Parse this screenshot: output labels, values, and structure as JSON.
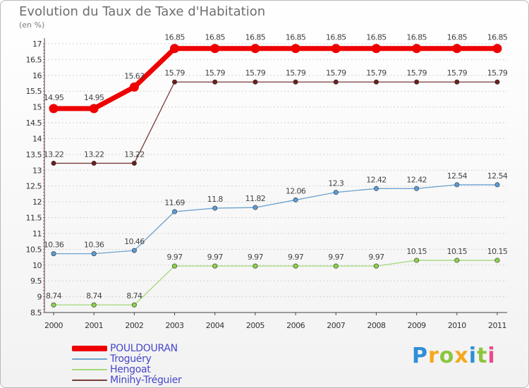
{
  "chart_data": {
    "type": "line",
    "title": "Evolution du Taux de Taxe d'Habitation",
    "ylabel": "(en %)",
    "xlabel": "",
    "x": [
      "2000",
      "2001",
      "2002",
      "2003",
      "2004",
      "2005",
      "2006",
      "2007",
      "2008",
      "2009",
      "2010",
      "2011"
    ],
    "ylim": [
      8.5,
      17
    ],
    "yticks": [
      8.5,
      9,
      9.5,
      10,
      10.5,
      11,
      11.5,
      12,
      12.5,
      13,
      13.5,
      14,
      14.5,
      15,
      15.5,
      16,
      16.5,
      17
    ],
    "grid": "horizontal",
    "legend_position": "bottom-left",
    "series": [
      {
        "name": "POULDOURAN",
        "color": "#ee0000",
        "marker": "#ee0000",
        "values": [
          14.95,
          14.95,
          15.63,
          16.85,
          16.85,
          16.85,
          16.85,
          16.85,
          16.85,
          16.85,
          16.85,
          16.85
        ],
        "labels": [
          "14.95",
          "14.95",
          "15.63",
          "16.85",
          "16.85",
          "16.85",
          "16.85",
          "16.85",
          "16.85",
          "16.85",
          "16.85",
          "16.85"
        ]
      },
      {
        "name": "Troguéry",
        "color": "#6da3d1",
        "marker": "#5b9bd5",
        "values": [
          10.36,
          10.36,
          10.46,
          11.69,
          11.8,
          11.82,
          12.06,
          12.3,
          12.42,
          12.42,
          12.54,
          12.54
        ],
        "labels": [
          "10.36",
          "10.36",
          "10.46",
          "11.69",
          "11.8",
          "11.82",
          "12.06",
          "12.3",
          "12.42",
          "12.42",
          "12.54",
          "12.54"
        ]
      },
      {
        "name": "Hengoat",
        "color": "#a3d97a",
        "marker": "#8cd24a",
        "values": [
          8.74,
          8.74,
          8.74,
          9.97,
          9.97,
          9.97,
          9.97,
          9.97,
          9.97,
          10.15,
          10.15,
          10.15
        ],
        "labels": [
          "8.74",
          "8.74",
          "8.74",
          "9.97",
          "9.97",
          "9.97",
          "9.97",
          "9.97",
          "9.97",
          "10.15",
          "10.15",
          "10.15"
        ]
      },
      {
        "name": "Minihy-Tréguier",
        "color": "#7a3a3a",
        "marker": "#6b1f1f",
        "values": [
          13.22,
          13.22,
          13.22,
          15.79,
          15.79,
          15.79,
          15.79,
          15.79,
          15.79,
          15.79,
          15.79,
          15.79
        ],
        "labels": [
          "13.22",
          "13.22",
          "13.22",
          "15.79",
          "15.79",
          "15.79",
          "15.79",
          "15.79",
          "15.79",
          "15.79",
          "15.79",
          "15.79"
        ]
      }
    ]
  },
  "logo": {
    "letters": [
      "P",
      "r",
      "o",
      "x",
      "i",
      "t",
      "i"
    ],
    "colors": [
      "#2f8fd6",
      "#f4a81d",
      "#8cc63f",
      "#f4a81d",
      "#2f8fd6",
      "#8cc63f",
      "#e94b8a"
    ]
  }
}
